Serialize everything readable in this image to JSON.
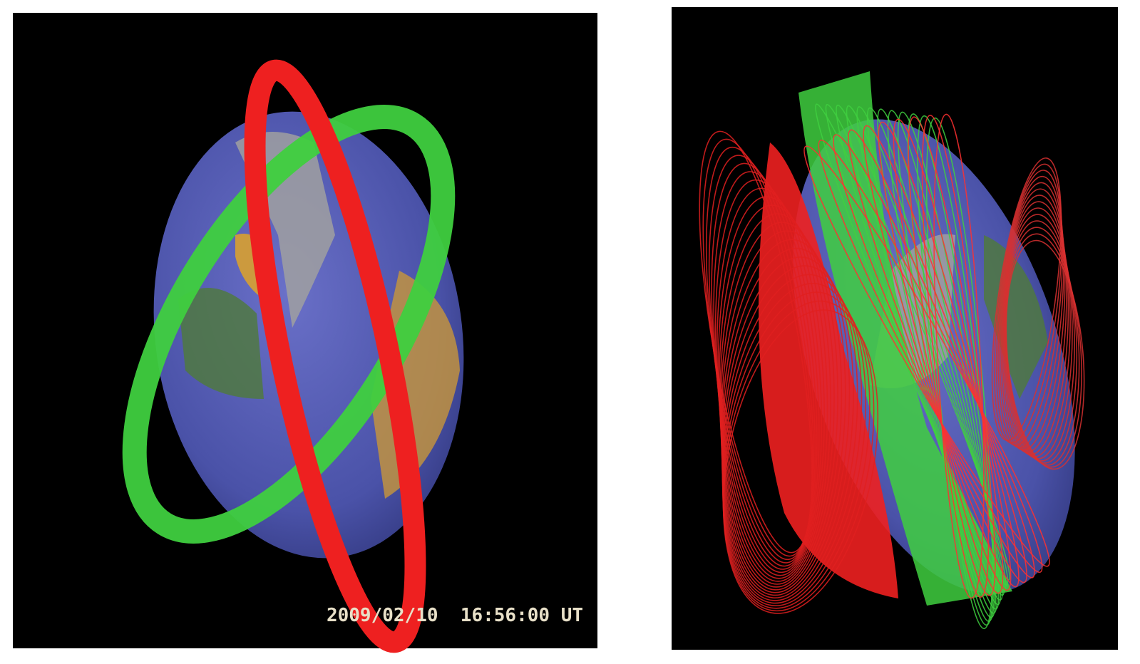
{
  "panels": [
    {
      "timestamp": "2009/02/10  16:56:00 UT"
    }
  ]
}
